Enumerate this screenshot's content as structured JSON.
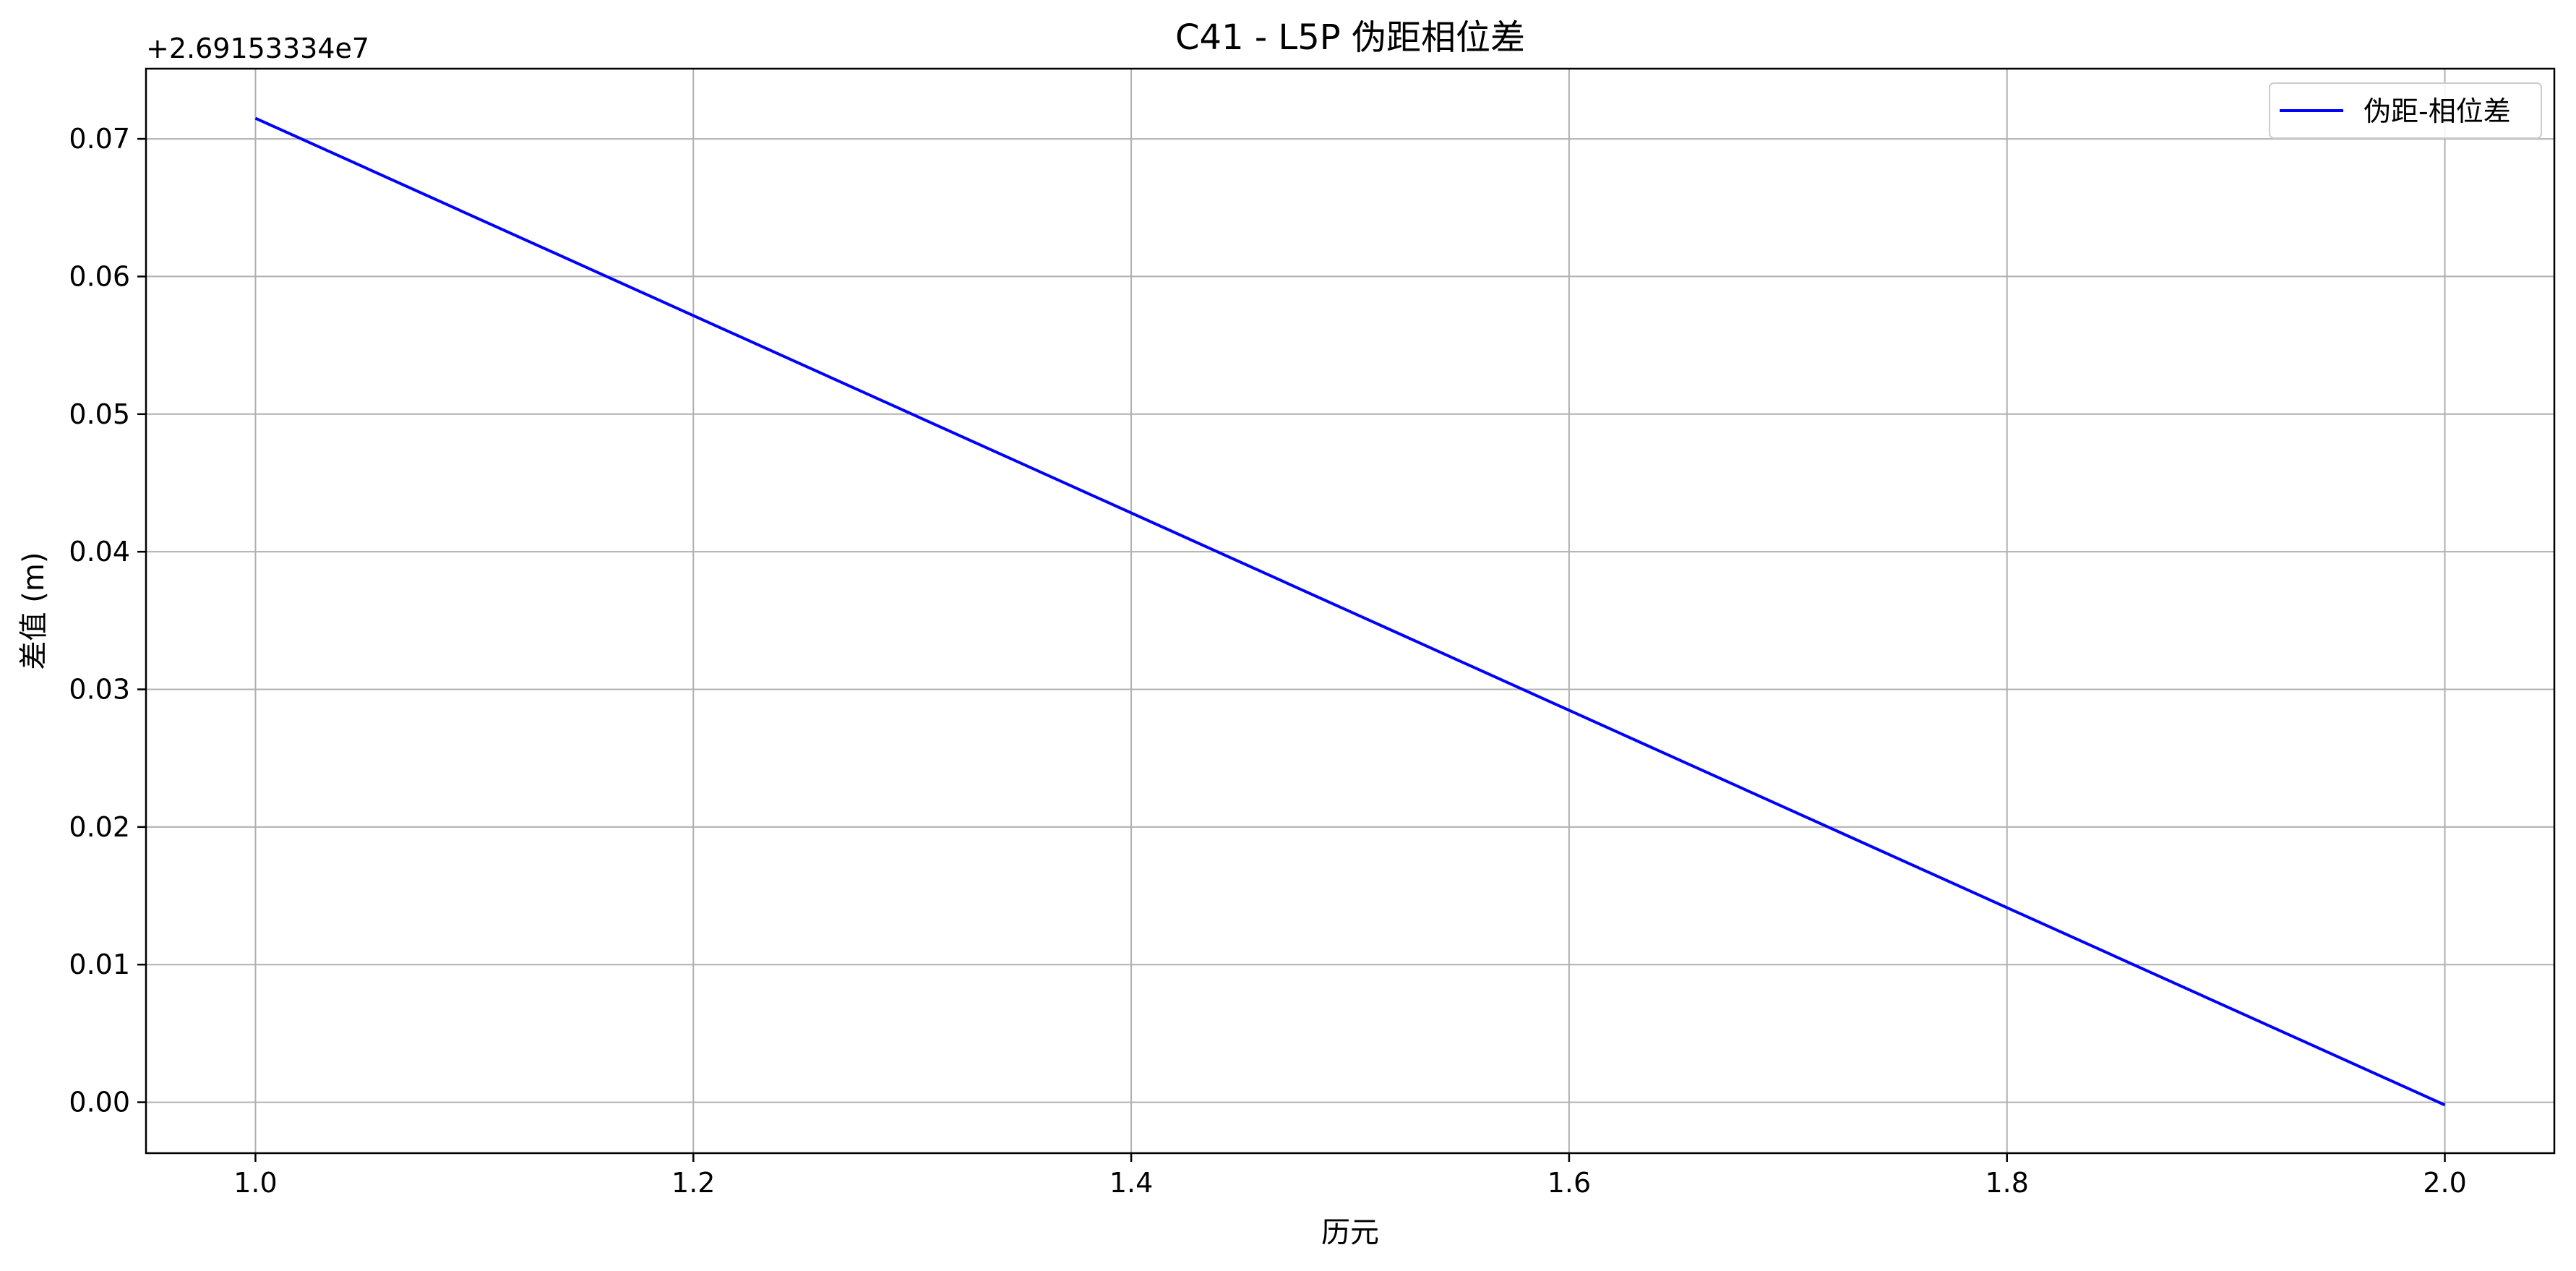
{
  "chart_data": {
    "type": "line",
    "title": "C41 - L5P 伪距相位差",
    "xlabel": "历元",
    "ylabel": "差值 (m)",
    "y_offset_label": "+2.69153334e7",
    "xlim": [
      0.95,
      2.05
    ],
    "ylim": [
      -0.0037,
      0.0751
    ],
    "x_ticks": [
      1.0,
      1.2,
      1.4,
      1.6,
      1.8,
      2.0
    ],
    "x_tick_labels": [
      "1.0",
      "1.2",
      "1.4",
      "1.6",
      "1.8",
      "2.0"
    ],
    "y_ticks": [
      0.0,
      0.01,
      0.02,
      0.03,
      0.04,
      0.05,
      0.06,
      0.07
    ],
    "y_tick_labels": [
      "0.00",
      "0.01",
      "0.02",
      "0.03",
      "0.04",
      "0.05",
      "0.06",
      "0.07"
    ],
    "grid": true,
    "legend_position": "top-right",
    "series": [
      {
        "name": "伪距-相位差",
        "color": "#0000ff",
        "x": [
          1.0,
          2.0
        ],
        "y": [
          0.0715,
          -0.0002
        ]
      }
    ]
  }
}
